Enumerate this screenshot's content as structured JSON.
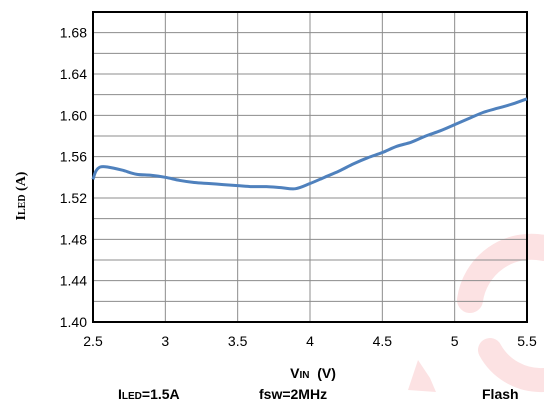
{
  "chart_data": {
    "type": "line",
    "xlabel": "VIN (V)",
    "ylabel": "ILED (A)",
    "xlim": [
      2.5,
      5.5
    ],
    "ylim": [
      1.4,
      1.7
    ],
    "x_ticks": [
      "2.5",
      "3",
      "3.5",
      "4",
      "4.5",
      "5",
      "5.5"
    ],
    "y_ticks": [
      "1.40",
      "1.44",
      "1.48",
      "1.52",
      "1.56",
      "1.60",
      "1.64",
      "1.68"
    ],
    "grid": true,
    "series": [
      {
        "color": "#4f81bd",
        "x": [
          2.5,
          2.52,
          2.55,
          2.6,
          2.7,
          2.8,
          2.9,
          3.0,
          3.1,
          3.2,
          3.3,
          3.4,
          3.5,
          3.6,
          3.7,
          3.8,
          3.9,
          4.0,
          4.1,
          4.2,
          4.3,
          4.4,
          4.5,
          4.6,
          4.7,
          4.8,
          4.9,
          5.0,
          5.1,
          5.2,
          5.3,
          5.4,
          5.5
        ],
        "y": [
          1.538,
          1.546,
          1.55,
          1.55,
          1.547,
          1.543,
          1.542,
          1.54,
          1.537,
          1.535,
          1.534,
          1.533,
          1.532,
          1.531,
          1.531,
          1.53,
          1.529,
          1.534,
          1.54,
          1.546,
          1.553,
          1.559,
          1.564,
          1.57,
          1.574,
          1.58,
          1.585,
          1.591,
          1.597,
          1.603,
          1.607,
          1.611,
          1.616
        ]
      }
    ]
  },
  "labels": {
    "ylabel_main": "I",
    "ylabel_sub": "LED",
    "ylabel_tail": " (A)",
    "xlabel_main": "V",
    "xlabel_sub": "IN",
    "xlabel_tail": "  (V)"
  },
  "notes": {
    "iled": "ILED=1.5A",
    "fsw": "fsw=2MHz",
    "mode": "Flash"
  },
  "watermark_color": "#e8141c"
}
